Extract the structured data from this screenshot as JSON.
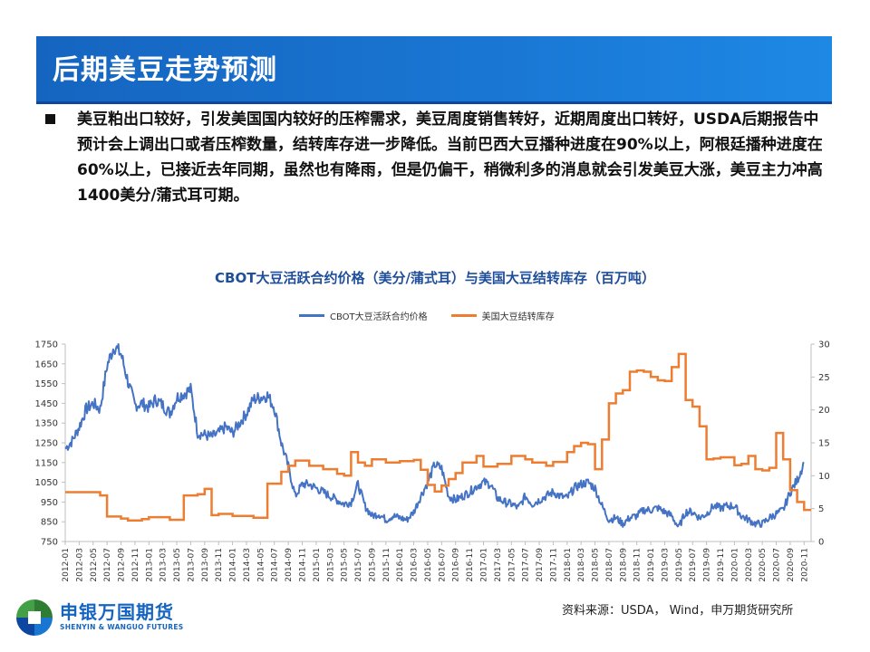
{
  "header": {
    "title": "后期美豆走势预测"
  },
  "body": {
    "paragraph": "美豆粕出口较好，引发美国国内较好的压榨需求，美豆周度销售转好，近期周度出口转好，USDA后期报告中预计会上调出口或者压榨数量，结转库存进一步降低。当前巴西大豆播种进度在90%以上，阿根廷播种进度在60%以上，已接近去年同期，虽然也有降雨，但是仍偏干，稍微利多的消息就会引发美豆大涨，美豆主力冲高1400美分/蒲式耳可期。"
  },
  "colors": {
    "price": "#4472c4",
    "stocks": "#ed7d31",
    "title_bar": "#1565c0"
  },
  "chart_data": {
    "type": "line",
    "title": "CBOT大豆活跃合约价格（美分/蒲式耳）与美国大豆结转库存（百万吨）",
    "xlabel": "",
    "ylabel_left": "",
    "ylabel_right": "",
    "legend_position": "top",
    "grid": false,
    "x_range": [
      "2012-01",
      "2020-12"
    ],
    "ylim_left": [
      750,
      1750
    ],
    "ylim_right": [
      0,
      30
    ],
    "y_ticks_left": [
      750,
      850,
      950,
      1050,
      1150,
      1250,
      1350,
      1450,
      1550,
      1650,
      1750
    ],
    "y_ticks_right": [
      0,
      5,
      10,
      15,
      20,
      25,
      30
    ],
    "x_ticks": [
      "2012-01",
      "2012-03",
      "2012-05",
      "2012-07",
      "2012-09",
      "2012-11",
      "2013-01",
      "2013-03",
      "2013-05",
      "2013-07",
      "2013-09",
      "2013-11",
      "2014-01",
      "2014-03",
      "2014-05",
      "2014-07",
      "2014-09",
      "2014-11",
      "2015-01",
      "2015-03",
      "2015-05",
      "2015-07",
      "2015-09",
      "2015-11",
      "2016-01",
      "2016-03",
      "2016-05",
      "2016-07",
      "2016-09",
      "2016-11",
      "2017-01",
      "2017-03",
      "2017-05",
      "2017-07",
      "2017-09",
      "2017-11",
      "2018-01",
      "2018-03",
      "2018-05",
      "2018-07",
      "2018-09",
      "2018-11",
      "2019-01",
      "2019-03",
      "2019-05",
      "2019-07",
      "2019-09",
      "2019-11",
      "2020-01",
      "2020-03",
      "2020-05",
      "2020-07",
      "2020-09",
      "2020-11"
    ],
    "series": [
      {
        "name": "CBOT大豆活跃合约价格",
        "axis": "left",
        "points": [
          [
            "2012-01",
            1220
          ],
          [
            "2012-02",
            1260
          ],
          [
            "2012-03",
            1330
          ],
          [
            "2012-04",
            1420
          ],
          [
            "2012-05",
            1450
          ],
          [
            "2012-06",
            1420
          ],
          [
            "2012-07",
            1640
          ],
          [
            "2012-08",
            1740
          ],
          [
            "2012-09",
            1700
          ],
          [
            "2012-10",
            1560
          ],
          [
            "2012-11",
            1440
          ],
          [
            "2012-12",
            1450
          ],
          [
            "2013-01",
            1430
          ],
          [
            "2013-02",
            1470
          ],
          [
            "2013-03",
            1440
          ],
          [
            "2013-04",
            1400
          ],
          [
            "2013-05",
            1480
          ],
          [
            "2013-06",
            1500
          ],
          [
            "2013-07",
            1520
          ],
          [
            "2013-08",
            1300
          ],
          [
            "2013-09",
            1290
          ],
          [
            "2013-10",
            1280
          ],
          [
            "2013-11",
            1300
          ],
          [
            "2013-12",
            1330
          ],
          [
            "2014-01",
            1300
          ],
          [
            "2014-02",
            1350
          ],
          [
            "2014-03",
            1400
          ],
          [
            "2014-04",
            1470
          ],
          [
            "2014-05",
            1480
          ],
          [
            "2014-06",
            1490
          ],
          [
            "2014-07",
            1430
          ],
          [
            "2014-08",
            1250
          ],
          [
            "2014-09",
            1130
          ],
          [
            "2014-10",
            980
          ],
          [
            "2014-11",
            1040
          ],
          [
            "2014-12",
            1040
          ],
          [
            "2015-01",
            1020
          ],
          [
            "2015-02",
            1000
          ],
          [
            "2015-03",
            980
          ],
          [
            "2015-04",
            960
          ],
          [
            "2015-05",
            940
          ],
          [
            "2015-06",
            950
          ],
          [
            "2015-07",
            1040
          ],
          [
            "2015-08",
            930
          ],
          [
            "2015-09",
            880
          ],
          [
            "2015-10",
            890
          ],
          [
            "2015-11",
            860
          ],
          [
            "2015-12",
            880
          ],
          [
            "2016-01",
            870
          ],
          [
            "2016-02",
            860
          ],
          [
            "2016-03",
            900
          ],
          [
            "2016-04",
            980
          ],
          [
            "2016-05",
            1050
          ],
          [
            "2016-06",
            1140
          ],
          [
            "2016-07",
            1120
          ],
          [
            "2016-08",
            980
          ],
          [
            "2016-09",
            960
          ],
          [
            "2016-10",
            980
          ],
          [
            "2016-11",
            1000
          ],
          [
            "2016-12",
            1030
          ],
          [
            "2017-01",
            1050
          ],
          [
            "2017-02",
            1040
          ],
          [
            "2017-03",
            970
          ],
          [
            "2017-04",
            950
          ],
          [
            "2017-05",
            940
          ],
          [
            "2017-06",
            920
          ],
          [
            "2017-07",
            980
          ],
          [
            "2017-08",
            940
          ],
          [
            "2017-09",
            960
          ],
          [
            "2017-10",
            980
          ],
          [
            "2017-11",
            1000
          ],
          [
            "2017-12",
            980
          ],
          [
            "2018-01",
            970
          ],
          [
            "2018-02",
            1020
          ],
          [
            "2018-03",
            1040
          ],
          [
            "2018-04",
            1050
          ],
          [
            "2018-05",
            1020
          ],
          [
            "2018-06",
            930
          ],
          [
            "2018-07",
            860
          ],
          [
            "2018-08",
            870
          ],
          [
            "2018-09",
            840
          ],
          [
            "2018-10",
            870
          ],
          [
            "2018-11",
            880
          ],
          [
            "2018-12",
            910
          ],
          [
            "2019-01",
            910
          ],
          [
            "2019-02",
            920
          ],
          [
            "2019-03",
            900
          ],
          [
            "2019-04",
            880
          ],
          [
            "2019-05",
            820
          ],
          [
            "2019-06",
            900
          ],
          [
            "2019-07",
            900
          ],
          [
            "2019-08",
            870
          ],
          [
            "2019-09",
            890
          ],
          [
            "2019-10",
            930
          ],
          [
            "2019-11",
            920
          ],
          [
            "2019-12",
            930
          ],
          [
            "2020-01",
            930
          ],
          [
            "2020-02",
            880
          ],
          [
            "2020-03",
            860
          ],
          [
            "2020-04",
            840
          ],
          [
            "2020-05",
            840
          ],
          [
            "2020-06",
            870
          ],
          [
            "2020-07",
            890
          ],
          [
            "2020-08",
            910
          ],
          [
            "2020-09",
            1000
          ],
          [
            "2020-10",
            1060
          ],
          [
            "2020-11",
            1150
          ]
        ]
      },
      {
        "name": "美国大豆结转库存",
        "axis": "right",
        "steps": [
          [
            "2012-01",
            7.5
          ],
          [
            "2012-06",
            7.0
          ],
          [
            "2012-07",
            3.8
          ],
          [
            "2012-09",
            3.5
          ],
          [
            "2012-10",
            3.2
          ],
          [
            "2012-12",
            3.4
          ],
          [
            "2013-01",
            3.7
          ],
          [
            "2013-04",
            3.3
          ],
          [
            "2013-06",
            7.0
          ],
          [
            "2013-08",
            7.2
          ],
          [
            "2013-09",
            8.0
          ],
          [
            "2013-10",
            4.0
          ],
          [
            "2013-11",
            4.2
          ],
          [
            "2014-01",
            3.9
          ],
          [
            "2014-04",
            3.6
          ],
          [
            "2014-06",
            8.8
          ],
          [
            "2014-08",
            10.6
          ],
          [
            "2014-09",
            11.5
          ],
          [
            "2014-10",
            12.3
          ],
          [
            "2014-12",
            11.5
          ],
          [
            "2015-02",
            11.0
          ],
          [
            "2015-04",
            10.3
          ],
          [
            "2015-05",
            10.0
          ],
          [
            "2015-06",
            13.6
          ],
          [
            "2015-07",
            12.0
          ],
          [
            "2015-08",
            11.5
          ],
          [
            "2015-09",
            12.5
          ],
          [
            "2015-11",
            12.0
          ],
          [
            "2016-01",
            12.2
          ],
          [
            "2016-03",
            12.4
          ],
          [
            "2016-04",
            10.9
          ],
          [
            "2016-05",
            8.6
          ],
          [
            "2016-06",
            7.6
          ],
          [
            "2016-07",
            8.5
          ],
          [
            "2016-08",
            9.5
          ],
          [
            "2016-09",
            10.4
          ],
          [
            "2016-10",
            12.0
          ],
          [
            "2016-12",
            13.0
          ],
          [
            "2017-01",
            11.4
          ],
          [
            "2017-03",
            11.8
          ],
          [
            "2017-05",
            13.0
          ],
          [
            "2017-07",
            12.5
          ],
          [
            "2017-08",
            12.0
          ],
          [
            "2017-10",
            11.5
          ],
          [
            "2017-11",
            12.1
          ],
          [
            "2018-01",
            13.6
          ],
          [
            "2018-02",
            14.5
          ],
          [
            "2018-03",
            15.0
          ],
          [
            "2018-04",
            14.8
          ],
          [
            "2018-05",
            11.0
          ],
          [
            "2018-06",
            15.5
          ],
          [
            "2018-07",
            21.0
          ],
          [
            "2018-08",
            22.5
          ],
          [
            "2018-09",
            23.0
          ],
          [
            "2018-10",
            25.8
          ],
          [
            "2018-11",
            26.0
          ],
          [
            "2018-12",
            25.8
          ],
          [
            "2019-01",
            25.0
          ],
          [
            "2019-02",
            24.5
          ],
          [
            "2019-03",
            24.4
          ],
          [
            "2019-04",
            26.5
          ],
          [
            "2019-05",
            28.5
          ],
          [
            "2019-06",
            21.5
          ],
          [
            "2019-07",
            20.5
          ],
          [
            "2019-08",
            17.5
          ],
          [
            "2019-09",
            12.5
          ],
          [
            "2019-10",
            12.6
          ],
          [
            "2019-11",
            12.8
          ],
          [
            "2020-01",
            11.6
          ],
          [
            "2020-02",
            11.8
          ],
          [
            "2020-03",
            13.0
          ],
          [
            "2020-04",
            11.0
          ],
          [
            "2020-05",
            10.8
          ],
          [
            "2020-06",
            11.2
          ],
          [
            "2020-07",
            16.5
          ],
          [
            "2020-08",
            12.5
          ],
          [
            "2020-09",
            7.8
          ],
          [
            "2020-10",
            6.0
          ],
          [
            "2020-11",
            4.8
          ]
        ]
      }
    ]
  },
  "source": {
    "text": "资料来源：USDA，  Wind，申万期货研究所"
  },
  "logo": {
    "cn": "申银万国期货",
    "en": "SHENYIN & WANGUO FUTURES"
  }
}
